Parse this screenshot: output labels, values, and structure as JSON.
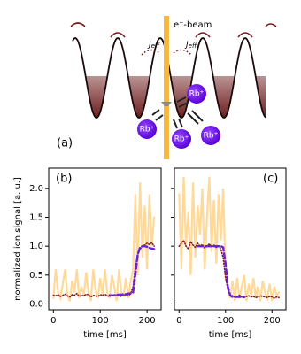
{
  "diagram": {
    "panel_label": "(a)",
    "beam_label": "e⁻-beam",
    "coupling_labels": [
      {
        "main": "J",
        "sub": "eff"
      },
      {
        "main": "J",
        "sub": "eff"
      }
    ],
    "ion_labels": [
      "Rb⁺",
      "Rb⁺",
      "Rb⁺",
      "Rb⁺"
    ]
  },
  "chart_data": [
    {
      "type": "line",
      "title": "(b)",
      "xlabel": "time [ms]",
      "ylabel": "normalized ion signal [a. u.]",
      "x": [
        0,
        5,
        10,
        15,
        20,
        25,
        30,
        35,
        40,
        45,
        50,
        55,
        60,
        65,
        70,
        75,
        80,
        85,
        90,
        95,
        100,
        105,
        110,
        115,
        120,
        125,
        130,
        135,
        140,
        145,
        150,
        155,
        160,
        165,
        170,
        175,
        180,
        185,
        190,
        195,
        200,
        205,
        210,
        215
      ],
      "series": [
        {
          "color": "#ffd58f",
          "values": [
            0.1,
            0.6,
            0.2,
            0.1,
            0.35,
            0.6,
            0.15,
            0.05,
            0.4,
            0.2,
            0.6,
            0.1,
            0.3,
            0.15,
            0.55,
            0.2,
            0.05,
            0.6,
            0.25,
            0.1,
            0.45,
            0.15,
            0.6,
            0.2,
            0.1,
            0.5,
            0.3,
            0.05,
            0.6,
            0.2,
            0.15,
            0.45,
            0.1,
            0.4,
            0.6,
            1.9,
            0.5,
            2.1,
            0.8,
            1.7,
            0.6,
            1.9,
            1.0,
            1.5
          ]
        },
        {
          "color": "#8b1a1a",
          "values": [
            0.15,
            0.14,
            0.16,
            0.13,
            0.15,
            0.17,
            0.14,
            0.12,
            0.16,
            0.15,
            0.18,
            0.13,
            0.15,
            0.14,
            0.17,
            0.16,
            0.12,
            0.15,
            0.14,
            0.13,
            0.16,
            0.15,
            0.17,
            0.14,
            0.13,
            0.15,
            0.16,
            0.14,
            0.15,
            0.13,
            0.16,
            0.15,
            0.14,
            0.18,
            0.3,
            0.65,
            0.85,
            0.95,
            1.0,
            1.02,
            1.05,
            1.03,
            1.06,
            1.0
          ]
        },
        {
          "color": "#6a1fe0",
          "values": [
            null,
            null,
            null,
            null,
            null,
            null,
            null,
            null,
            null,
            null,
            null,
            null,
            null,
            null,
            null,
            null,
            null,
            null,
            null,
            null,
            null,
            null,
            null,
            null,
            0.15,
            0.15,
            0.15,
            0.16,
            0.16,
            0.16,
            0.17,
            0.17,
            0.18,
            0.18,
            0.2,
            0.5,
            0.85,
            0.98,
            1.0,
            1.0,
            0.99,
            0.97,
            0.96,
            0.95
          ]
        }
      ],
      "xlim": [
        -10,
        230
      ],
      "ylim": [
        -0.1,
        2.35
      ],
      "xticks": [
        0,
        100,
        200
      ],
      "yticks": [
        {
          "value": 0,
          "label": "0.0"
        },
        {
          "value": 0.5,
          "label": "0.5"
        },
        {
          "value": 1,
          "label": "1.0"
        },
        {
          "value": 1.5,
          "label": "1.5"
        },
        {
          "value": 2,
          "label": "2.0"
        }
      ]
    },
    {
      "type": "line",
      "title": "(c)",
      "xlabel": "time [ms]",
      "x": [
        0,
        5,
        10,
        15,
        20,
        25,
        30,
        35,
        40,
        45,
        50,
        55,
        60,
        65,
        70,
        75,
        80,
        85,
        90,
        95,
        100,
        105,
        110,
        115,
        120,
        125,
        130,
        135,
        140,
        145,
        150,
        155,
        160,
        165,
        170,
        175,
        180,
        185,
        190,
        195,
        200,
        205,
        210,
        215
      ],
      "series": [
        {
          "color": "#ffd58f",
          "values": [
            1.9,
            0.6,
            2.2,
            1.0,
            1.6,
            0.5,
            2.1,
            0.8,
            1.7,
            1.2,
            2.0,
            0.6,
            1.5,
            2.2,
            0.9,
            1.8,
            0.7,
            1.9,
            1.1,
            2.0,
            0.5,
            0.3,
            0.1,
            0.4,
            0.05,
            0.45,
            0.1,
            0.3,
            0.5,
            0.05,
            0.35,
            0.15,
            0.45,
            0.1,
            0.3,
            0.05,
            0.4,
            0.2,
            0.1,
            0.35,
            0.05,
            0.3,
            0.15,
            0.2
          ]
        },
        {
          "color": "#8b1a1a",
          "values": [
            1.0,
            1.05,
            1.1,
            1.0,
            0.95,
            1.08,
            1.02,
            0.98,
            1.05,
            1.0,
            1.03,
            0.97,
            1.0,
            1.04,
            0.99,
            1.02,
            0.98,
            1.0,
            0.95,
            0.8,
            0.45,
            0.25,
            0.15,
            0.14,
            0.12,
            0.13,
            0.15,
            0.12,
            0.11,
            0.13,
            0.14,
            0.12,
            0.13,
            0.11,
            0.12,
            0.14,
            0.13,
            0.12,
            0.11,
            0.13,
            0.12,
            0.1,
            0.12,
            0.11
          ]
        },
        {
          "color": "#6a1fe0",
          "values": [
            null,
            null,
            null,
            null,
            null,
            null,
            null,
            null,
            1.0,
            1.0,
            1.0,
            1.0,
            1.0,
            1.0,
            1.0,
            1.0,
            1.0,
            1.0,
            1.0,
            0.98,
            0.7,
            0.3,
            0.15,
            0.12,
            0.12,
            0.12,
            0.12,
            0.12,
            0.12,
            null,
            null,
            null,
            null,
            null,
            null,
            null,
            null,
            null,
            null,
            null,
            null,
            null,
            null,
            null
          ]
        }
      ],
      "xlim": [
        -10,
        230
      ],
      "ylim": [
        -0.1,
        2.35
      ],
      "xticks": [
        0,
        100,
        200
      ],
      "yticks": [
        0,
        0.5,
        1,
        1.5,
        2
      ]
    }
  ]
}
